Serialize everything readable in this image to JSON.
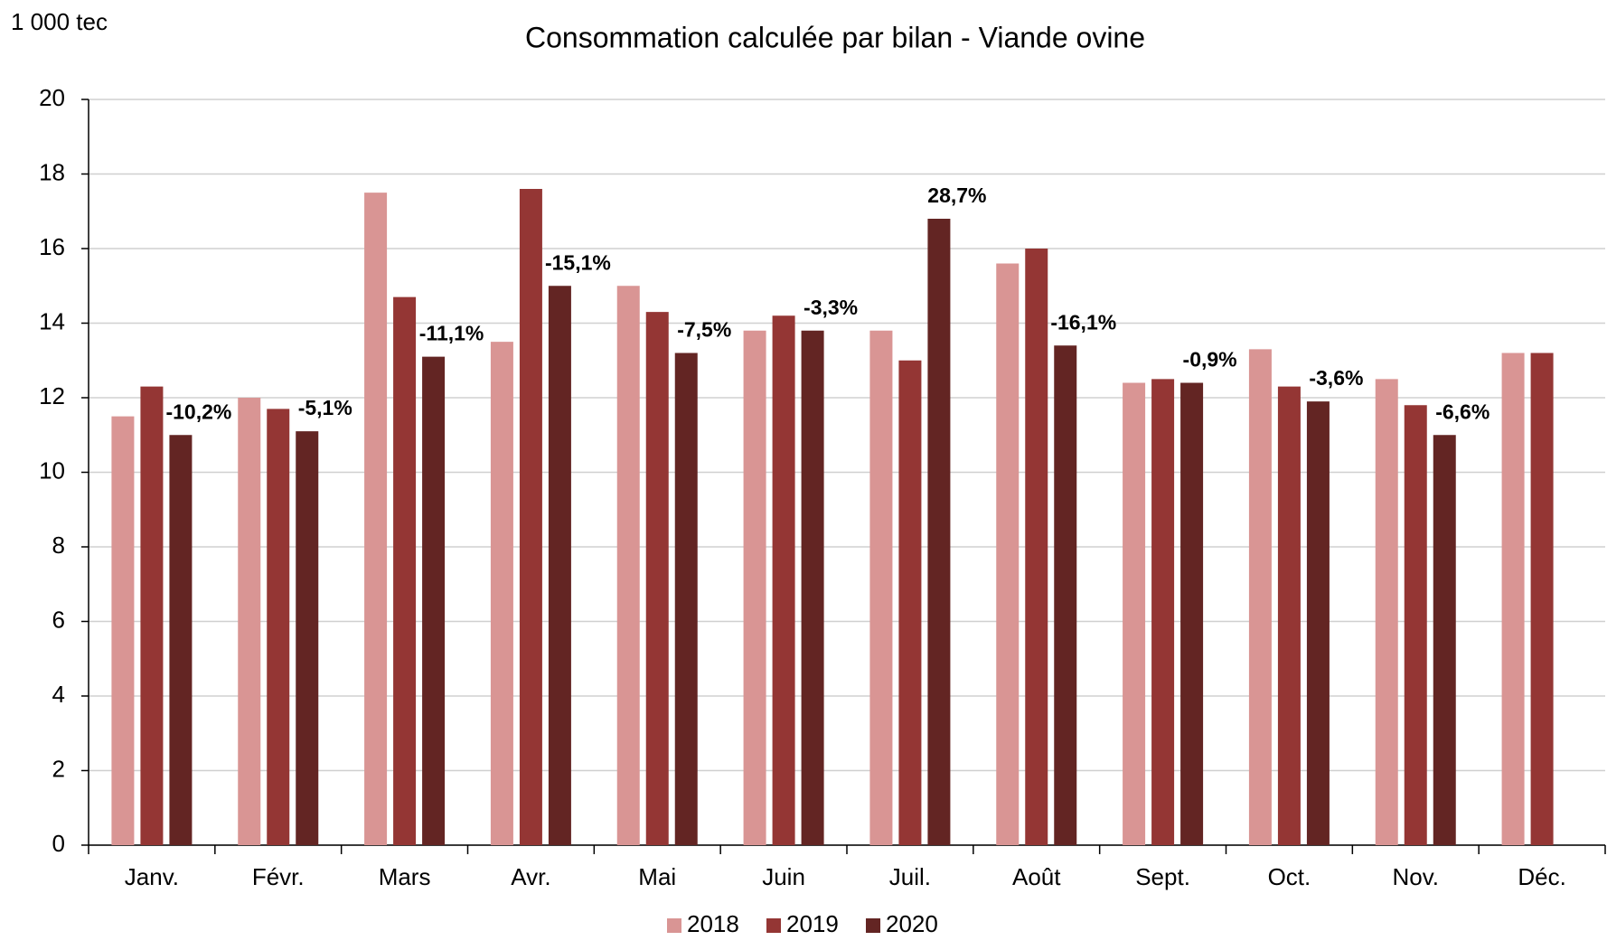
{
  "chart_data": {
    "type": "bar",
    "title": "Consommation  calculée  par bilan  -  Viande  ovine",
    "y_label": "1 000 tec",
    "categories": [
      "Janv.",
      "Févr.",
      "Mars",
      "Avr.",
      "Mai",
      "Juin",
      "Juil.",
      "Août",
      "Sept.",
      "Oct.",
      "Nov.",
      "Déc."
    ],
    "series": [
      {
        "name": "2018",
        "color": "#d99594",
        "values": [
          11.5,
          12.0,
          17.5,
          13.5,
          15.0,
          13.8,
          13.8,
          15.6,
          12.4,
          13.3,
          12.5,
          13.2
        ]
      },
      {
        "name": "2019",
        "color": "#943634",
        "values": [
          12.3,
          11.7,
          14.7,
          17.6,
          14.3,
          14.2,
          13.0,
          16.0,
          12.5,
          12.3,
          11.8,
          13.2
        ]
      },
      {
        "name": "2020",
        "color": "#632523",
        "values": [
          11.0,
          11.1,
          13.1,
          15.0,
          13.2,
          13.8,
          16.8,
          13.4,
          12.4,
          11.9,
          11.0,
          null
        ]
      }
    ],
    "annotations": [
      "-10,2%",
      "-5,1%",
      "-11,1%",
      "-15,1%",
      "-7,5%",
      "-3,3%",
      "28,7%",
      "-16,1%",
      "-0,9%",
      "-3,6%",
      "-6,6%",
      null
    ],
    "ylim": [
      0,
      20
    ],
    "yticks": [
      0,
      2,
      4,
      6,
      8,
      10,
      12,
      14,
      16,
      18,
      20
    ],
    "grid": true,
    "legend": "bottom"
  }
}
